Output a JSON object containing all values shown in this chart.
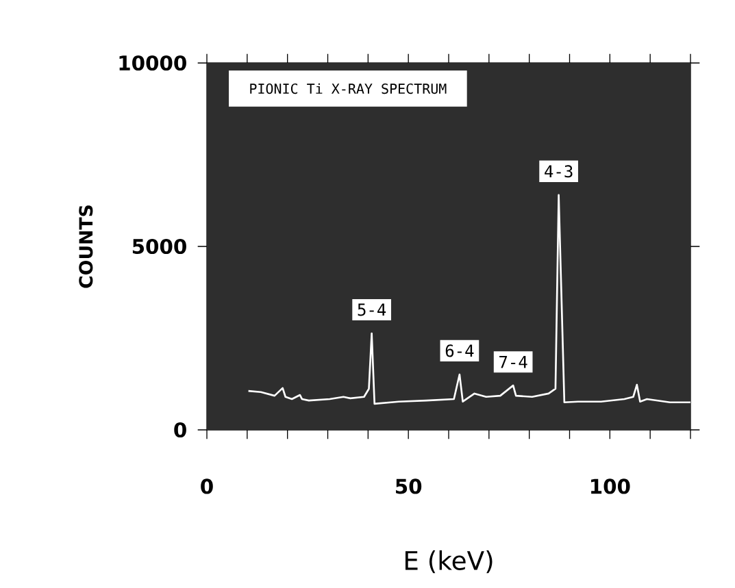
{
  "chart_data": {
    "type": "line",
    "title": "PIONIC Ti X-RAY SPECTRUM",
    "xlabel": "E (keV)",
    "ylabel": "COUNTS",
    "x": [
      10.3,
      13.4,
      16.8,
      18.8,
      19.5,
      21.1,
      23.1,
      23.6,
      25.3,
      30.5,
      33.9,
      35.6,
      39.0,
      40.2,
      40.9,
      41.6,
      47.6,
      54.5,
      61.3,
      62.7,
      63.5,
      66.4,
      69.3,
      72.8,
      76.0,
      76.7,
      80.7,
      84.8,
      86.5,
      87.3,
      88.7,
      92.1,
      97.8,
      103.6,
      105.8,
      106.7,
      107.5,
      109.2,
      114.9,
      120
    ],
    "values": [
      1060,
      1030,
      930,
      1140,
      900,
      840,
      950,
      840,
      800,
      840,
      900,
      860,
      900,
      1120,
      2630,
      710,
      770,
      800,
      840,
      1510,
      770,
      990,
      900,
      930,
      1210,
      930,
      900,
      990,
      1120,
      6400,
      750,
      770,
      770,
      840,
      900,
      1230,
      770,
      840,
      750,
      750
    ],
    "color": "#ffffff",
    "xlim": [
      0,
      120
    ],
    "ylim": [
      0,
      10000
    ],
    "xticks": [
      0,
      {
        "value": 10,
        "label": null
      },
      {
        "value": 20,
        "label": null
      },
      {
        "value": 30,
        "label": null
      },
      {
        "value": 40,
        "label": null
      },
      50,
      {
        "value": 60,
        "label": null
      },
      {
        "value": 70,
        "label": null
      },
      {
        "value": 80,
        "label": null
      },
      {
        "value": 90,
        "label": null
      },
      100,
      {
        "value": 110,
        "label": null
      },
      {
        "value": 120,
        "label": null
      }
    ],
    "yticks": [
      0,
      5000,
      10000
    ],
    "annotations": [
      {
        "text": "5-4",
        "x": 40.9,
        "y": 2630
      },
      {
        "text": "6-4",
        "x": 62.7,
        "y": 1510
      },
      {
        "text": "7-4",
        "x": 76.0,
        "y": 1210
      },
      {
        "text": "4-3",
        "x": 87.3,
        "y": 6400
      }
    ],
    "grid": false,
    "marker": "none",
    "line_style": "solid"
  }
}
